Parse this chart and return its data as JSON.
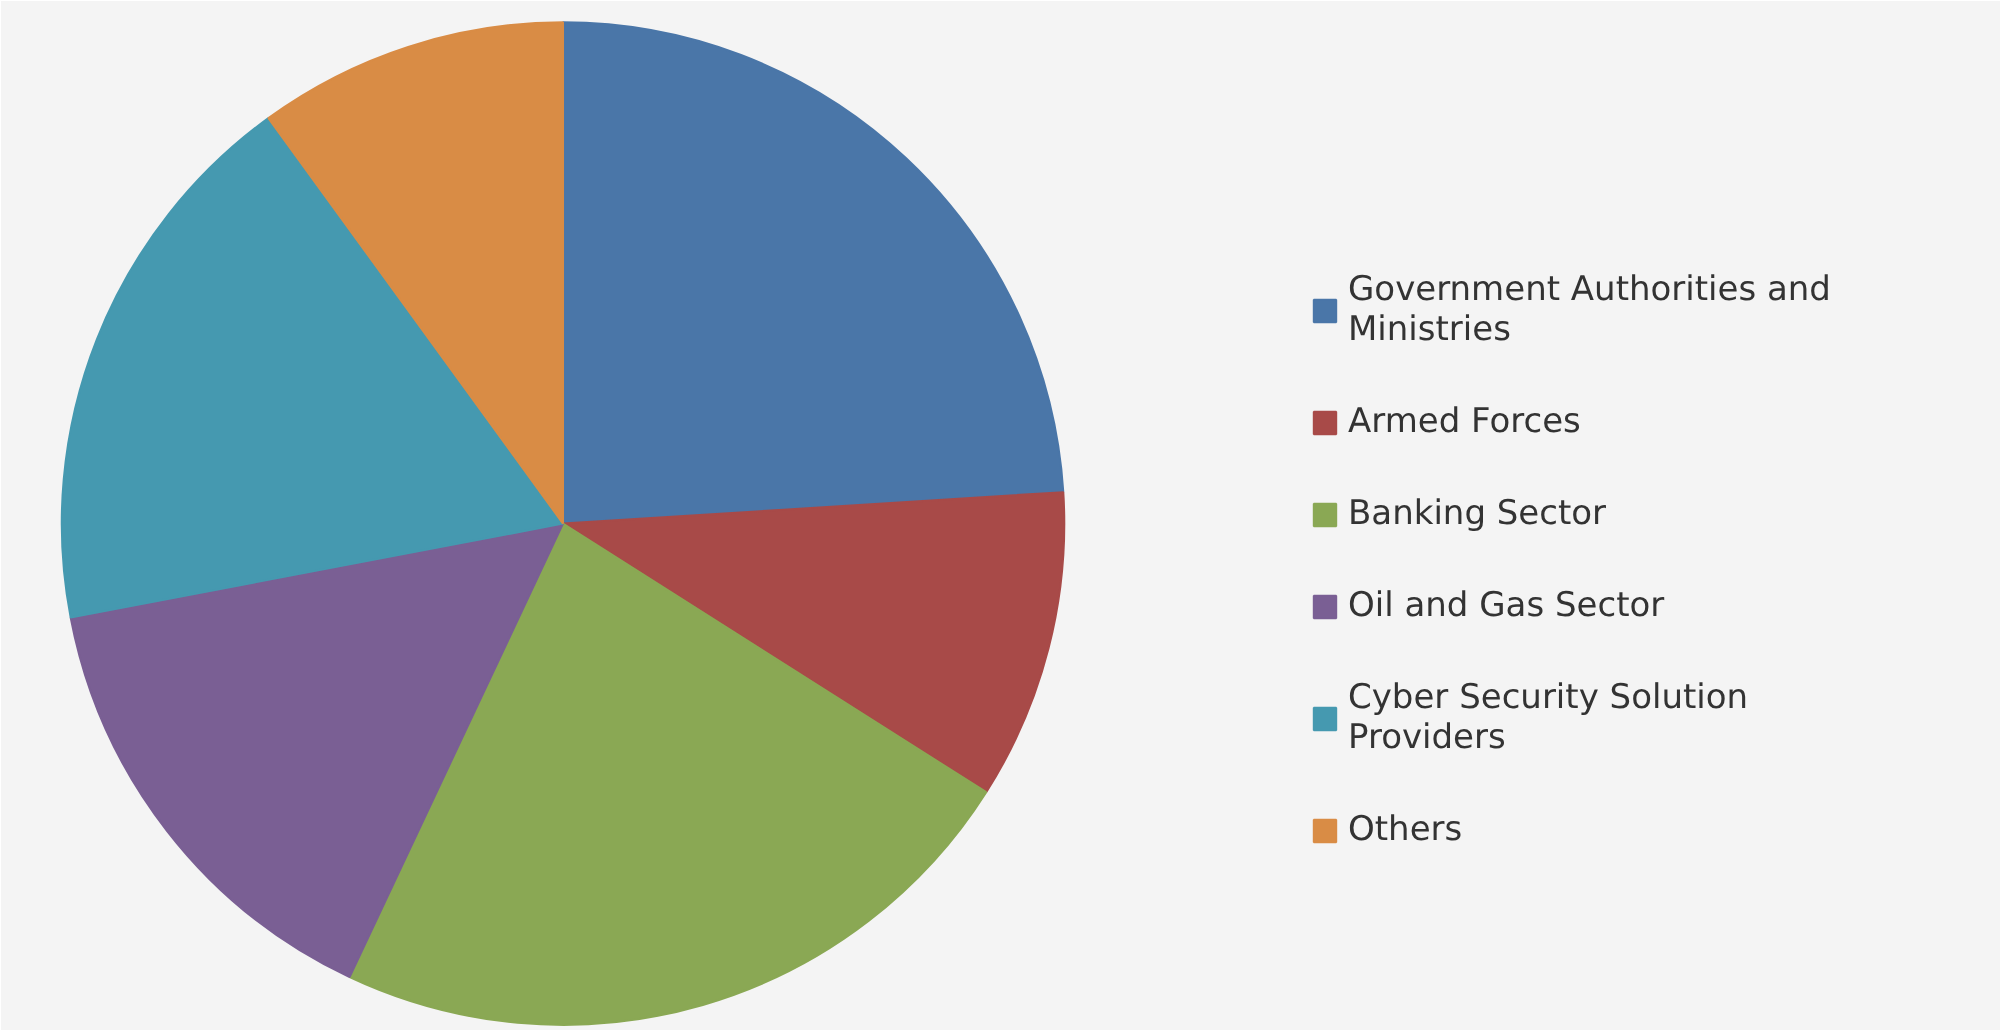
{
  "chart_data": {
    "type": "pie",
    "categories": [
      "Government Authorities and Ministries",
      "Armed Forces",
      "Banking Sector",
      "Oil and Gas Sector",
      "Cyber Security Solution Providers",
      "Others"
    ],
    "values": [
      24,
      10,
      23,
      15,
      18,
      10
    ],
    "colors": [
      "#4a76a8",
      "#a84a48",
      "#8aa854",
      "#7a5f94",
      "#4599b0",
      "#d98c45"
    ],
    "legend": "right"
  }
}
